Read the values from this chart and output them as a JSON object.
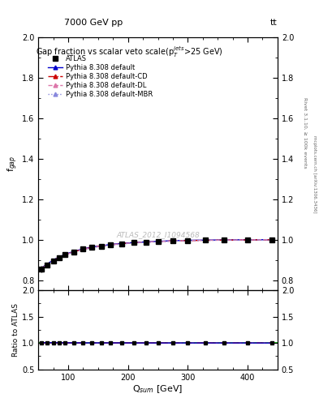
{
  "title_top": "7000 GeV pp",
  "title_top_right": "tt",
  "right_label": "Rivet 3.1.10, ≥ 100k events",
  "right_label2": "mcplots.cern.ch [arXiv:1306.3436]",
  "watermark": "ATLAS_2012_I1094568",
  "main_title": "Gap fraction vs scalar veto scale(p$_T^{jets}$>25 GeV)",
  "xlabel": "Q$_{sum}$ [GeV]",
  "ylabel_main": "f$_{gap}$",
  "ylabel_ratio": "Ratio to ATLAS",
  "ylim_main": [
    0.75,
    2.0
  ],
  "yticks_main": [
    0.8,
    1.0,
    1.2,
    1.4,
    1.6,
    1.8,
    2.0
  ],
  "ylim_ratio": [
    0.5,
    2.0
  ],
  "yticks_ratio": [
    0.5,
    1.0,
    1.5,
    2.0
  ],
  "xlim": [
    50,
    450
  ],
  "xticks": [
    100,
    200,
    300,
    400
  ],
  "atlas_x": [
    55,
    65,
    75,
    85,
    95,
    110,
    125,
    140,
    155,
    170,
    190,
    210,
    230,
    250,
    275,
    300,
    330,
    360,
    400,
    440
  ],
  "atlas_y": [
    0.855,
    0.875,
    0.895,
    0.91,
    0.925,
    0.94,
    0.953,
    0.962,
    0.968,
    0.974,
    0.98,
    0.985,
    0.988,
    0.991,
    0.994,
    0.996,
    0.997,
    0.998,
    0.999,
    1.0
  ],
  "atlas_yerr": [
    0.015,
    0.012,
    0.01,
    0.009,
    0.008,
    0.007,
    0.006,
    0.005,
    0.005,
    0.004,
    0.004,
    0.003,
    0.003,
    0.003,
    0.002,
    0.002,
    0.002,
    0.002,
    0.001,
    0.001
  ],
  "pythia_default_x": [
    55,
    65,
    75,
    85,
    95,
    110,
    125,
    140,
    155,
    170,
    190,
    210,
    230,
    250,
    275,
    300,
    330,
    360,
    400,
    440
  ],
  "pythia_default_y": [
    0.86,
    0.88,
    0.9,
    0.915,
    0.928,
    0.943,
    0.955,
    0.964,
    0.97,
    0.976,
    0.982,
    0.986,
    0.989,
    0.992,
    0.995,
    0.997,
    0.998,
    0.999,
    1.0,
    1.0
  ],
  "pythia_cd_x": [
    55,
    65,
    75,
    85,
    95,
    110,
    125,
    140,
    155,
    170,
    190,
    210,
    230,
    250,
    275,
    300,
    330,
    360,
    400,
    440
  ],
  "pythia_cd_y": [
    0.858,
    0.878,
    0.898,
    0.913,
    0.926,
    0.941,
    0.953,
    0.962,
    0.969,
    0.975,
    0.981,
    0.985,
    0.988,
    0.991,
    0.994,
    0.996,
    0.997,
    0.998,
    0.999,
    1.0
  ],
  "pythia_dl_x": [
    55,
    65,
    75,
    85,
    95,
    110,
    125,
    140,
    155,
    170,
    190,
    210,
    230,
    250,
    275,
    300,
    330,
    360,
    400,
    440
  ],
  "pythia_dl_y": [
    0.857,
    0.877,
    0.897,
    0.912,
    0.925,
    0.94,
    0.952,
    0.961,
    0.968,
    0.974,
    0.98,
    0.984,
    0.988,
    0.991,
    0.994,
    0.996,
    0.997,
    0.998,
    0.999,
    1.0
  ],
  "pythia_mbr_x": [
    55,
    65,
    75,
    85,
    95,
    110,
    125,
    140,
    155,
    170,
    190,
    210,
    230,
    250,
    275,
    300,
    330,
    360,
    400,
    440
  ],
  "pythia_mbr_y": [
    0.856,
    0.876,
    0.896,
    0.911,
    0.924,
    0.939,
    0.951,
    0.96,
    0.967,
    0.973,
    0.979,
    0.984,
    0.987,
    0.99,
    0.993,
    0.996,
    0.997,
    0.998,
    0.999,
    1.0
  ],
  "color_atlas": "#000000",
  "color_default": "#0000cc",
  "color_cd": "#cc0000",
  "color_dl": "#dd77aa",
  "color_mbr": "#8888dd",
  "legend_labels": [
    "ATLAS",
    "Pythia 8.308 default",
    "Pythia 8.308 default-CD",
    "Pythia 8.308 default-DL",
    "Pythia 8.308 default-MBR"
  ]
}
